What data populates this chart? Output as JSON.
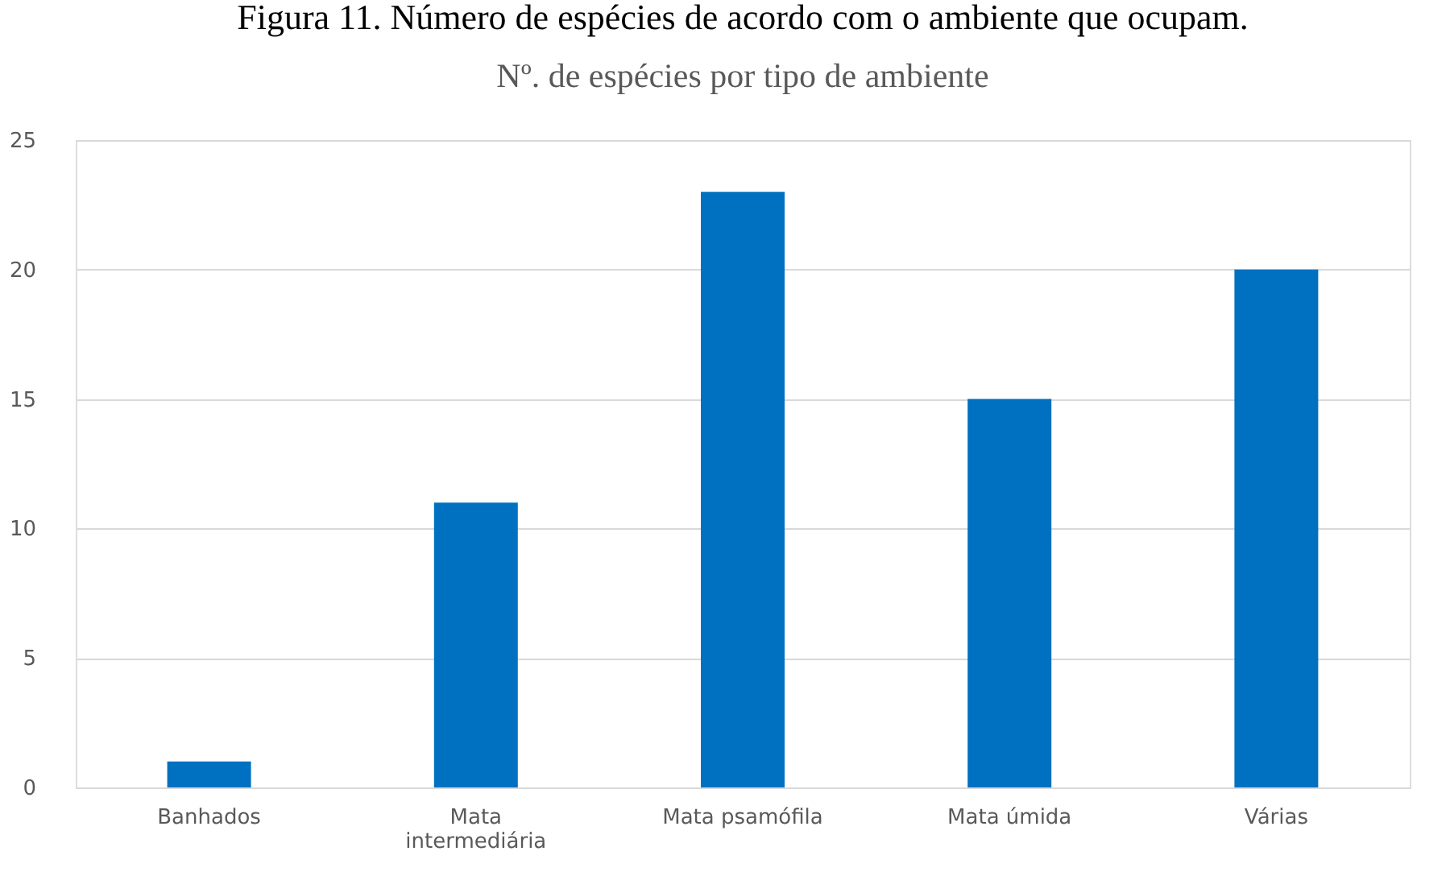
{
  "chart_data": {
    "type": "bar",
    "title": "Nº. de espécies por tipo de ambiente",
    "annotations": [
      "Figura 11. Número de espécies de acordo com o ambiente que ocupam."
    ],
    "categories": [
      "Banhados",
      "Mata intermediária",
      "Mata psamófila",
      "Mata úmida",
      "Várias"
    ],
    "values": [
      1,
      11,
      23,
      15,
      20
    ],
    "color": "#0070c0",
    "ylim": [
      0,
      25
    ],
    "yticks": [
      0,
      5,
      10,
      15,
      20,
      25
    ],
    "grid": "y"
  }
}
